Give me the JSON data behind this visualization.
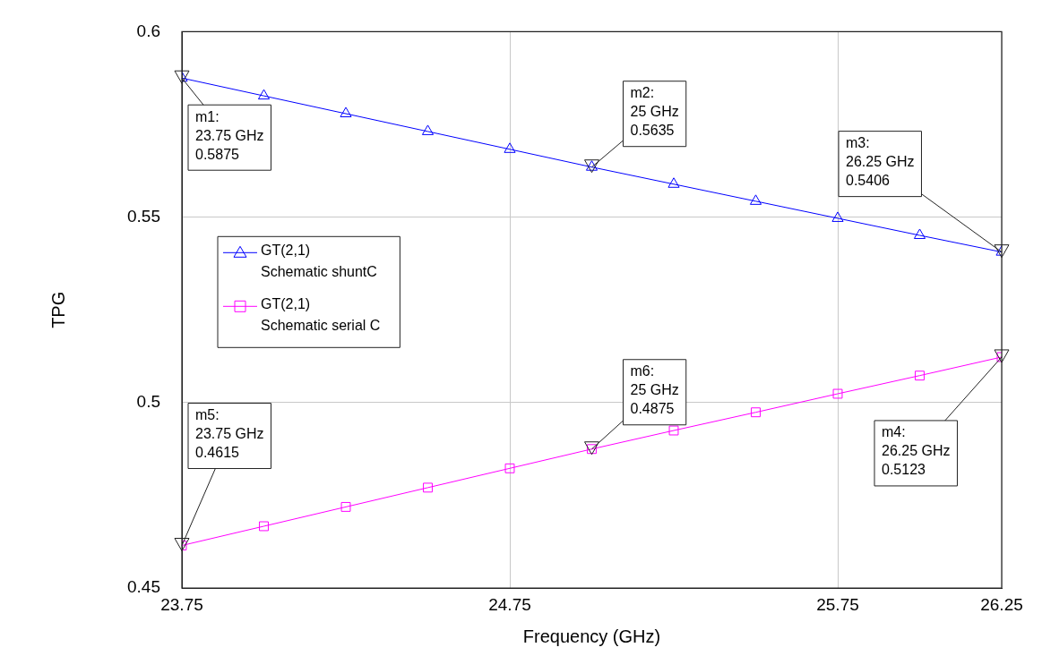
{
  "chart_data": {
    "type": "line",
    "xlabel": "Frequency (GHz)",
    "ylabel": "TPG",
    "x": [
      23.75,
      24.0,
      24.25,
      24.5,
      24.75,
      25.0,
      25.25,
      25.5,
      25.75,
      26.0,
      26.25
    ],
    "series": [
      {
        "name": "GT(2,1)\nSchematic shuntC",
        "color": "#0000ff",
        "marker": "triangle",
        "values": [
          0.5875,
          0.5827,
          0.5779,
          0.5731,
          0.5683,
          0.5635,
          0.5589,
          0.5543,
          0.5497,
          0.5451,
          0.5406
        ]
      },
      {
        "name": "GT(2,1)\nSchematic serial C",
        "color": "#ff00ff",
        "marker": "square",
        "values": [
          0.4615,
          0.4667,
          0.4719,
          0.4771,
          0.4823,
          0.4875,
          0.4925,
          0.4974,
          0.5024,
          0.5073,
          0.5123
        ]
      }
    ],
    "xlim": [
      23.75,
      26.25
    ],
    "xticks": [
      23.75,
      24.75,
      25.75,
      26.25
    ],
    "ylim": [
      0.45,
      0.6
    ],
    "yticks": [
      0.45,
      0.5,
      0.55,
      0.6
    ],
    "grid": true,
    "legend": "left",
    "line_style": "solid",
    "annotations": [
      {
        "text": "m1:\n23.75 GHz\n0.5875",
        "x": 23.75,
        "y": 0.5875
      },
      {
        "text": "m2:\n25 GHz\n0.5635",
        "x": 25,
        "y": 0.5635
      },
      {
        "text": "m3:\n26.25 GHz\n0.5406",
        "x": 26.25,
        "y": 0.5406
      },
      {
        "text": "m4:\n26.25 GHz\n0.5123",
        "x": 26.25,
        "y": 0.5123
      },
      {
        "text": "m5:\n23.75 GHz\n0.4615",
        "x": 23.75,
        "y": 0.4615
      },
      {
        "text": "m6:\n25 GHz\n0.4875",
        "x": 25,
        "y": 0.4875
      }
    ]
  }
}
